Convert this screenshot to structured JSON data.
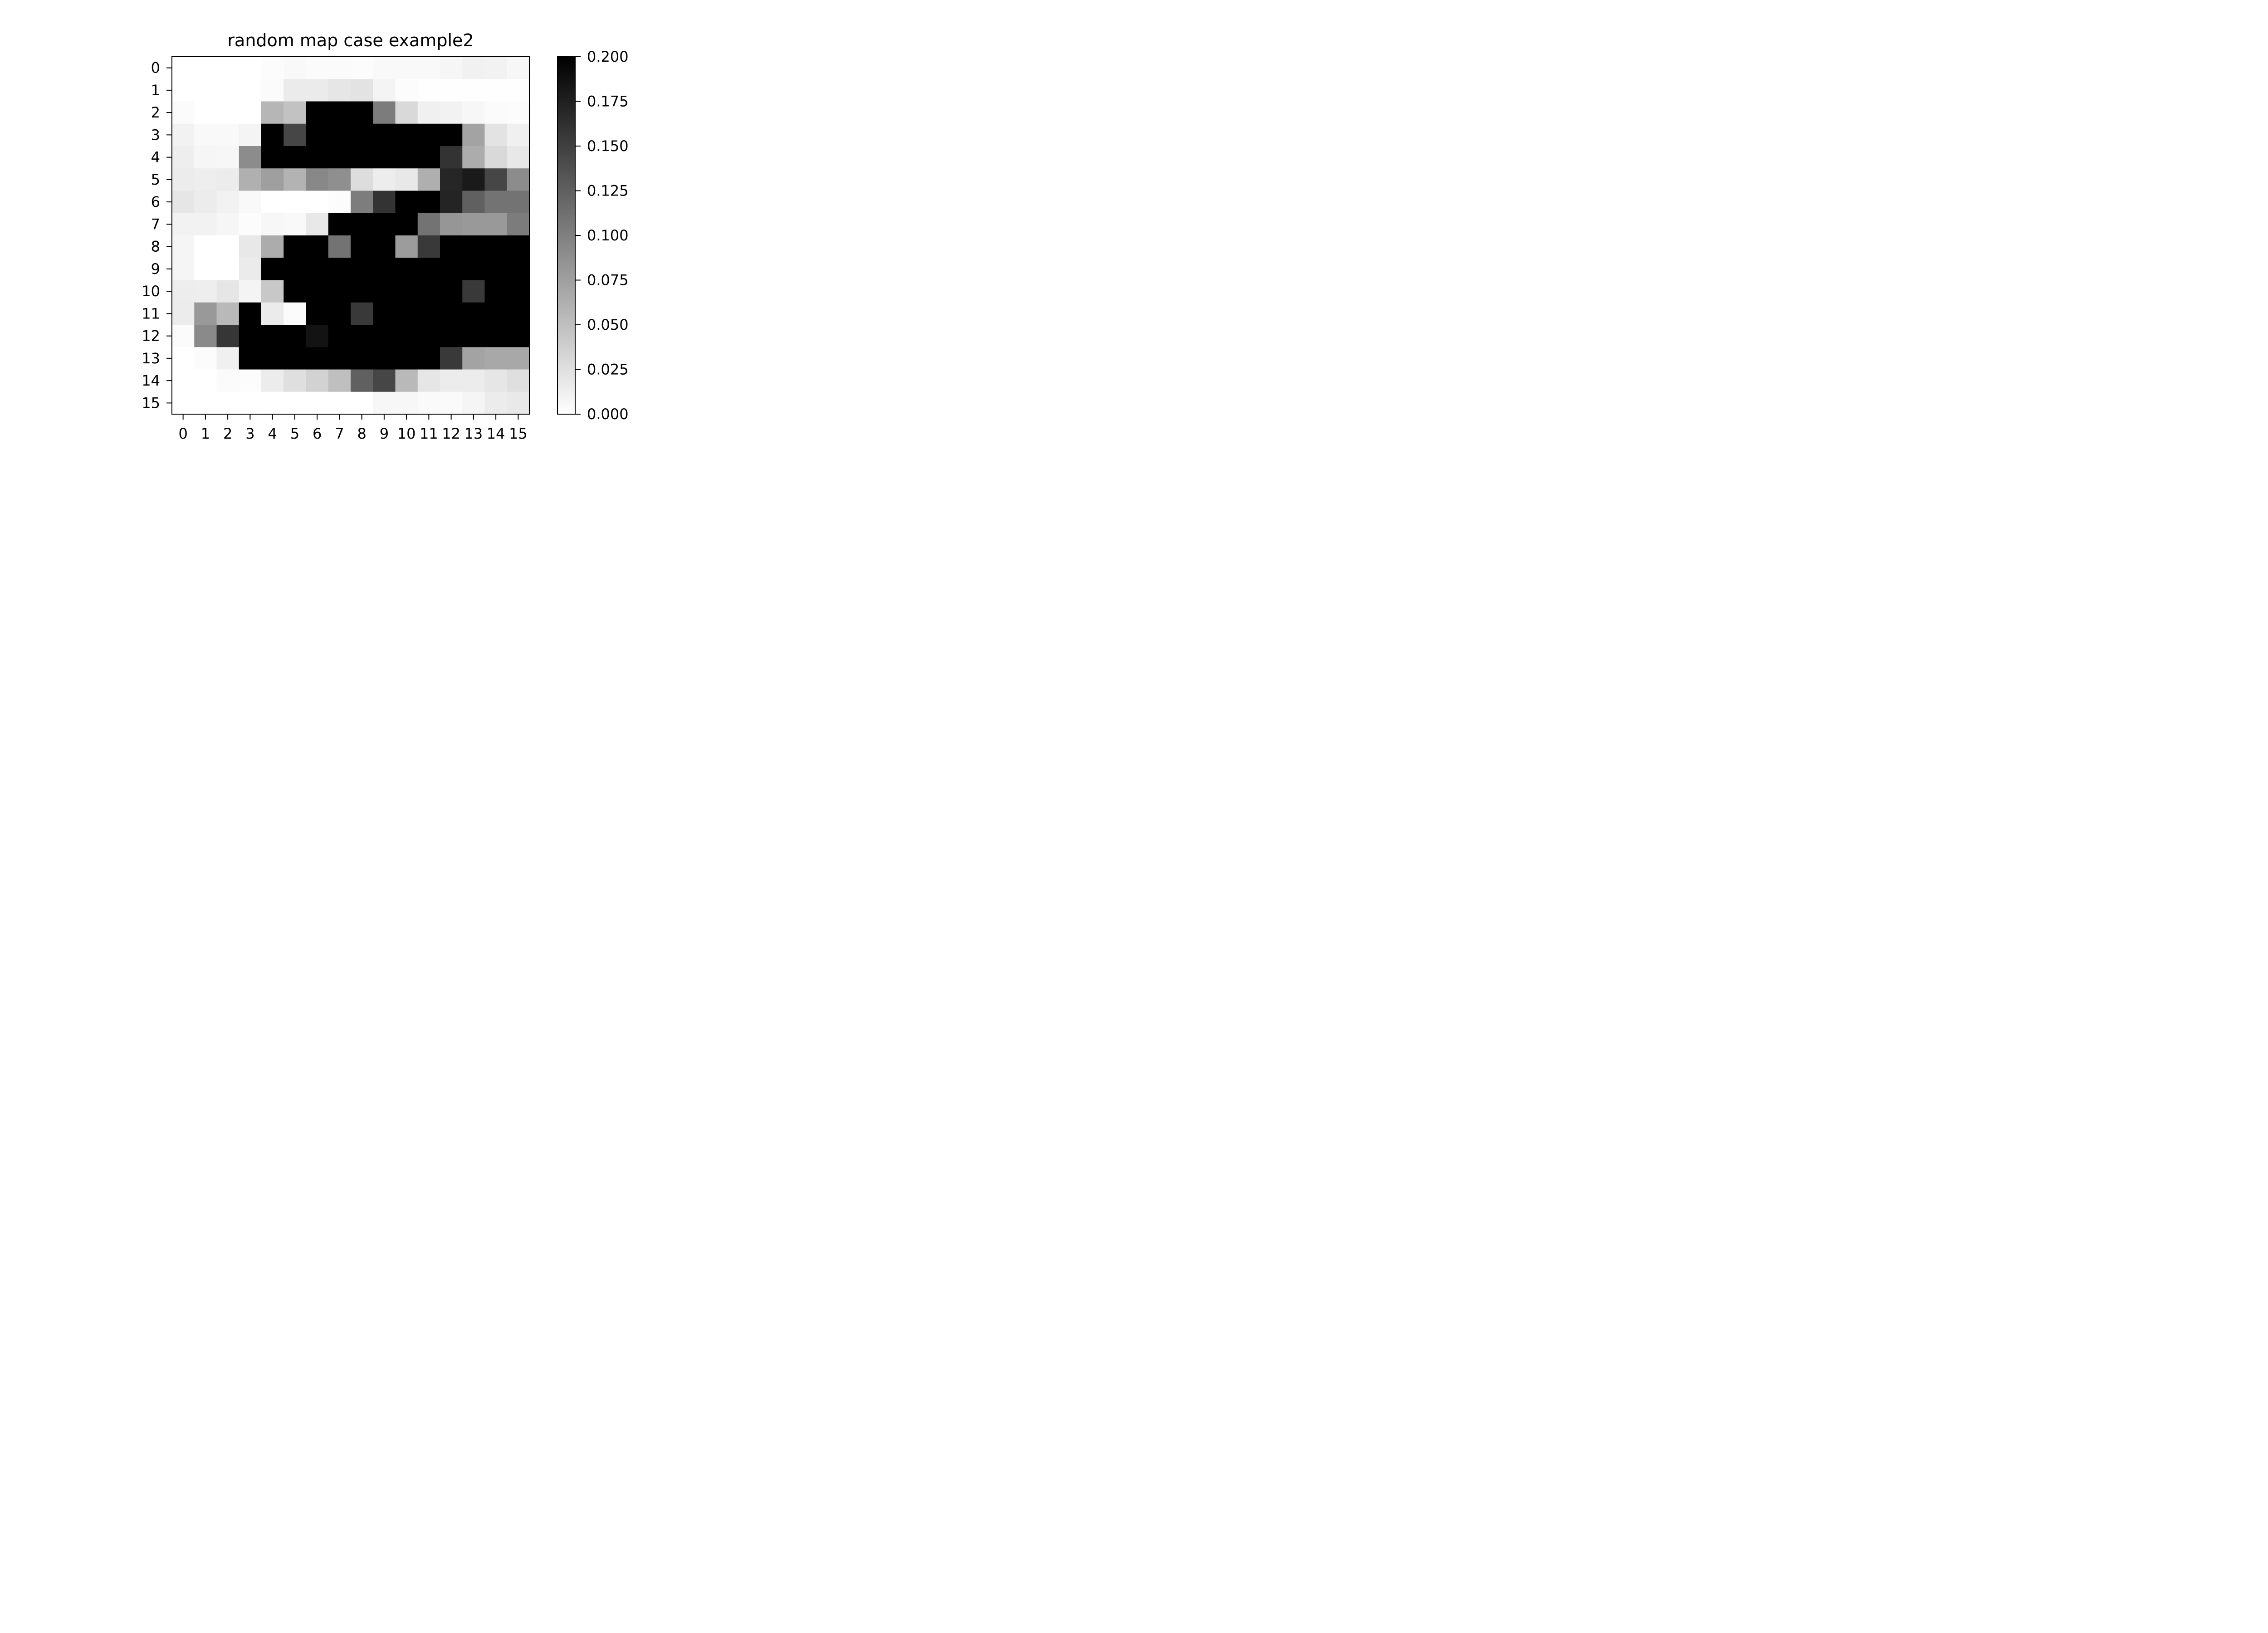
{
  "chart_data": {
    "type": "heatmap",
    "title": "random map case example2",
    "x_ticks": [
      "0",
      "1",
      "2",
      "3",
      "4",
      "5",
      "6",
      "7",
      "8",
      "9",
      "10",
      "11",
      "12",
      "13",
      "14",
      "15"
    ],
    "y_ticks": [
      "0",
      "1",
      "2",
      "3",
      "4",
      "5",
      "6",
      "7",
      "8",
      "9",
      "10",
      "11",
      "12",
      "13",
      "14",
      "15"
    ],
    "colormap": "gray_r",
    "vmin": 0.0,
    "vmax": 0.2,
    "colorbar_ticks": [
      "0.000",
      "0.025",
      "0.050",
      "0.075",
      "0.100",
      "0.125",
      "0.150",
      "0.175",
      "0.200"
    ],
    "colorbar_tick_values": [
      0.0,
      0.025,
      0.05,
      0.075,
      0.1,
      0.125,
      0.15,
      0.175,
      0.2
    ],
    "values": [
      [
        0.0,
        0.0,
        0.0,
        0.0,
        0.002,
        0.005,
        0.003,
        0.003,
        0.002,
        0.005,
        0.005,
        0.005,
        0.007,
        0.011,
        0.01,
        0.006
      ],
      [
        0.0,
        0.0,
        0.0,
        0.0,
        0.003,
        0.016,
        0.016,
        0.02,
        0.022,
        0.009,
        0.002,
        0.001,
        0.001,
        0.001,
        0.001,
        0.001
      ],
      [
        0.003,
        0.0,
        0.0,
        0.0,
        0.057,
        0.048,
        0.2,
        0.2,
        0.2,
        0.103,
        0.03,
        0.012,
        0.01,
        0.006,
        0.003,
        0.002
      ],
      [
        0.01,
        0.005,
        0.005,
        0.009,
        0.2,
        0.145,
        0.2,
        0.2,
        0.2,
        0.2,
        0.2,
        0.2,
        0.2,
        0.072,
        0.022,
        0.012
      ],
      [
        0.013,
        0.007,
        0.006,
        0.09,
        0.2,
        0.2,
        0.2,
        0.2,
        0.2,
        0.2,
        0.2,
        0.2,
        0.16,
        0.065,
        0.03,
        0.018
      ],
      [
        0.015,
        0.013,
        0.015,
        0.062,
        0.075,
        0.06,
        0.093,
        0.088,
        0.027,
        0.014,
        0.018,
        0.063,
        0.17,
        0.18,
        0.145,
        0.09
      ],
      [
        0.02,
        0.015,
        0.01,
        0.005,
        0.0,
        0.0,
        0.0,
        0.002,
        0.102,
        0.16,
        0.2,
        0.2,
        0.172,
        0.125,
        0.11,
        0.11
      ],
      [
        0.01,
        0.01,
        0.007,
        0.002,
        0.006,
        0.005,
        0.018,
        0.2,
        0.2,
        0.2,
        0.2,
        0.11,
        0.082,
        0.08,
        0.08,
        0.103
      ],
      [
        0.008,
        0.0,
        0.0,
        0.018,
        0.065,
        0.2,
        0.2,
        0.11,
        0.2,
        0.2,
        0.078,
        0.155,
        0.2,
        0.2,
        0.2,
        0.2
      ],
      [
        0.008,
        0.0,
        0.0,
        0.016,
        0.2,
        0.2,
        0.2,
        0.2,
        0.2,
        0.2,
        0.2,
        0.2,
        0.2,
        0.2,
        0.2,
        0.2
      ],
      [
        0.014,
        0.013,
        0.02,
        0.009,
        0.043,
        0.2,
        0.2,
        0.2,
        0.2,
        0.2,
        0.2,
        0.2,
        0.2,
        0.155,
        0.2,
        0.2
      ],
      [
        0.015,
        0.08,
        0.055,
        0.2,
        0.016,
        0.003,
        0.2,
        0.2,
        0.155,
        0.2,
        0.2,
        0.2,
        0.2,
        0.2,
        0.2,
        0.2
      ],
      [
        0.003,
        0.092,
        0.158,
        0.2,
        0.2,
        0.2,
        0.185,
        0.2,
        0.2,
        0.2,
        0.2,
        0.2,
        0.2,
        0.2,
        0.2,
        0.2
      ],
      [
        0.0,
        0.002,
        0.012,
        0.2,
        0.2,
        0.2,
        0.2,
        0.2,
        0.2,
        0.2,
        0.2,
        0.2,
        0.155,
        0.072,
        0.068,
        0.068
      ],
      [
        0.0,
        0.0,
        0.003,
        0.002,
        0.015,
        0.025,
        0.035,
        0.05,
        0.125,
        0.145,
        0.055,
        0.02,
        0.015,
        0.015,
        0.02,
        0.025
      ],
      [
        0.0,
        0.0,
        0.0,
        0.0,
        0.0,
        0.0,
        0.0,
        0.0,
        0.0,
        0.006,
        0.006,
        0.004,
        0.004,
        0.008,
        0.015,
        0.017
      ]
    ]
  }
}
